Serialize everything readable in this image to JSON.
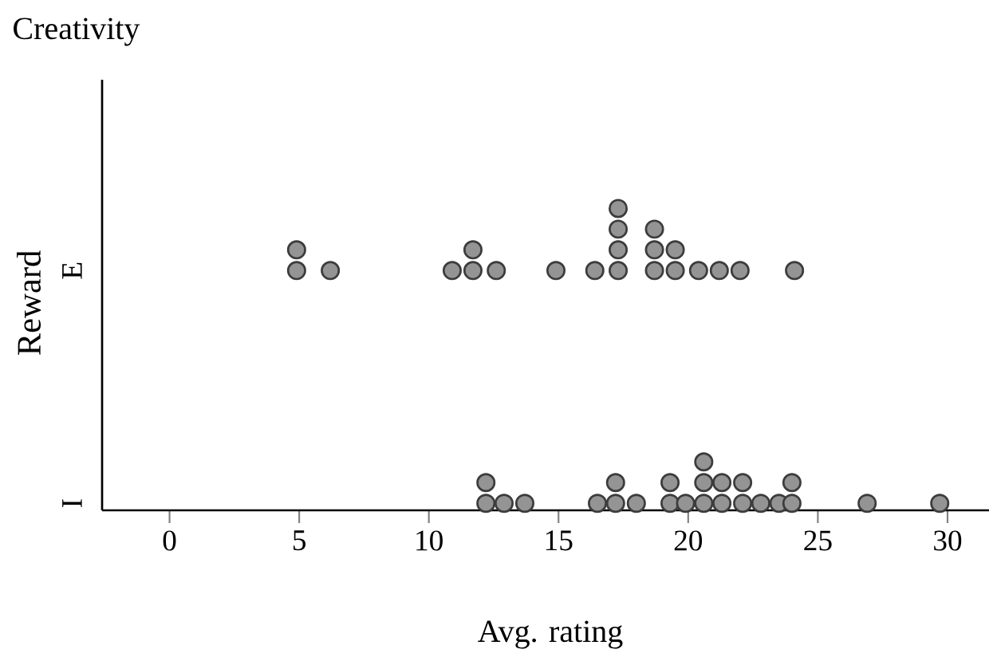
{
  "chart_data": {
    "type": "scatter",
    "title": "Creativity",
    "xlabel": "Avg. rating",
    "ylabel": "Reward",
    "categories": [
      "E",
      "I"
    ],
    "orientation": "horizontal",
    "xlim": [
      -2.6,
      31.6
    ],
    "xticks": [
      0,
      5,
      10,
      15,
      20,
      25,
      30
    ],
    "marker": "circle",
    "series": [
      {
        "color": "#3c3c3c",
        "x": [
          "E",
          "E",
          "E",
          "E",
          "E",
          "E",
          "E",
          "E",
          "E",
          "E",
          "E",
          "E",
          "E",
          "E",
          "E",
          "E",
          "E",
          "E",
          "E",
          "E",
          "E",
          "E"
        ],
        "values": [
          4.9,
          4.9,
          6.2,
          10.9,
          11.7,
          11.7,
          12.6,
          14.9,
          16.4,
          17.3,
          17.3,
          17.3,
          17.3,
          18.7,
          18.7,
          18.7,
          19.5,
          19.5,
          20.4,
          21.2,
          22.0,
          24.1
        ]
      },
      {
        "color": "#3c3c3c",
        "x": [
          "I",
          "I",
          "I",
          "I",
          "I",
          "I",
          "I",
          "I",
          "I",
          "I",
          "I",
          "I",
          "I",
          "I",
          "I",
          "I",
          "I",
          "I",
          "I",
          "I",
          "I",
          "I",
          "I",
          "I"
        ],
        "values": [
          12.2,
          12.2,
          12.9,
          13.7,
          16.5,
          17.2,
          17.2,
          18.0,
          19.3,
          19.3,
          19.9,
          20.6,
          20.6,
          20.6,
          21.3,
          21.3,
          22.1,
          22.1,
          22.8,
          23.5,
          24.0,
          24.0,
          26.9,
          29.7
        ]
      }
    ]
  }
}
